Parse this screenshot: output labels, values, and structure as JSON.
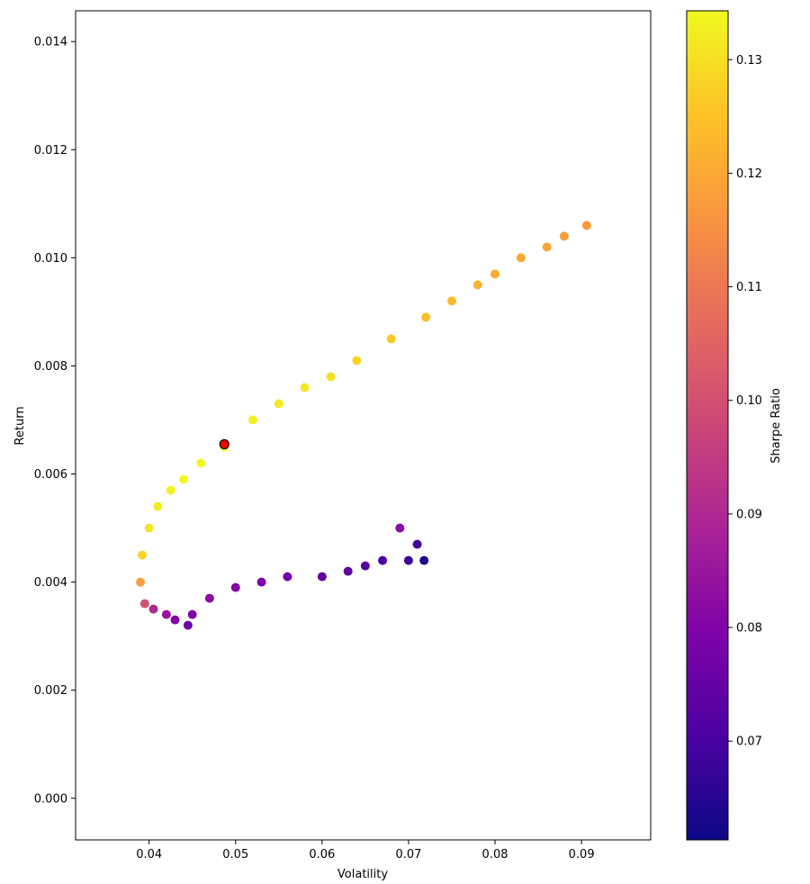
{
  "chart_data": {
    "type": "scatter",
    "xlabel": "Volatility",
    "ylabel": "Return",
    "xlim": [
      0.0315,
      0.098
    ],
    "ylim": [
      -0.00077,
      0.01457
    ],
    "x_ticks": [
      0.04,
      0.05,
      0.06,
      0.07,
      0.08,
      0.09
    ],
    "x_tick_labels": [
      "0.04",
      "0.05",
      "0.06",
      "0.07",
      "0.08",
      "0.09"
    ],
    "y_ticks": [
      0.0,
      0.002,
      0.004,
      0.006,
      0.008,
      0.01,
      0.012,
      0.014
    ],
    "y_tick_labels": [
      "0.000",
      "0.002",
      "0.004",
      "0.006",
      "0.008",
      "0.010",
      "0.012",
      "0.014"
    ],
    "grid": false,
    "colormap": "plasma",
    "colorbar": {
      "label": "Sharpe Ratio",
      "range": [
        0.0613,
        0.1343
      ],
      "ticks": [
        0.07,
        0.08,
        0.09,
        0.1,
        0.11,
        0.12,
        0.13
      ],
      "tick_labels": [
        "0.07",
        "0.08",
        "0.09",
        "0.10",
        "0.11",
        "0.12",
        "0.13"
      ]
    },
    "series": [
      {
        "marker_color": "colormap",
        "points": [
          [
            0.039,
            0.004,
            0.118
          ],
          [
            0.0392,
            0.0045,
            0.128
          ],
          [
            0.0395,
            0.0036,
            0.1
          ],
          [
            0.04,
            0.005,
            0.131
          ],
          [
            0.0405,
            0.0035,
            0.09
          ],
          [
            0.041,
            0.0054,
            0.132
          ],
          [
            0.042,
            0.0034,
            0.085
          ],
          [
            0.0425,
            0.0057,
            0.133
          ],
          [
            0.043,
            0.0033,
            0.08
          ],
          [
            0.044,
            0.0059,
            0.134
          ],
          [
            0.0445,
            0.0032,
            0.076
          ],
          [
            0.045,
            0.0034,
            0.08
          ],
          [
            0.046,
            0.0062,
            0.134
          ],
          [
            0.047,
            0.0037,
            0.082
          ],
          [
            0.0487,
            0.0065,
            0.134
          ],
          [
            0.05,
            0.0039,
            0.081
          ],
          [
            0.052,
            0.007,
            0.133
          ],
          [
            0.053,
            0.004,
            0.08
          ],
          [
            0.055,
            0.0073,
            0.132
          ],
          [
            0.056,
            0.0041,
            0.078
          ],
          [
            0.058,
            0.0076,
            0.131
          ],
          [
            0.06,
            0.0041,
            0.074
          ],
          [
            0.061,
            0.0078,
            0.13
          ],
          [
            0.063,
            0.0042,
            0.073
          ],
          [
            0.064,
            0.0081,
            0.128
          ],
          [
            0.065,
            0.0043,
            0.072
          ],
          [
            0.067,
            0.0044,
            0.07
          ],
          [
            0.068,
            0.0085,
            0.126
          ],
          [
            0.069,
            0.005,
            0.082
          ],
          [
            0.07,
            0.0044,
            0.068
          ],
          [
            0.071,
            0.0047,
            0.069
          ],
          [
            0.0718,
            0.0044,
            0.064
          ],
          [
            0.072,
            0.0089,
            0.124
          ],
          [
            0.075,
            0.0092,
            0.123
          ],
          [
            0.078,
            0.0095,
            0.122
          ],
          [
            0.08,
            0.0097,
            0.121
          ],
          [
            0.083,
            0.01,
            0.12
          ],
          [
            0.086,
            0.0102,
            0.119
          ],
          [
            0.088,
            0.0104,
            0.118
          ],
          [
            0.0906,
            0.0106,
            0.117
          ]
        ]
      }
    ],
    "highlight_point": {
      "x": 0.0487,
      "y": 0.00655,
      "color": "#ff0000",
      "edge_color": "#000000"
    }
  }
}
